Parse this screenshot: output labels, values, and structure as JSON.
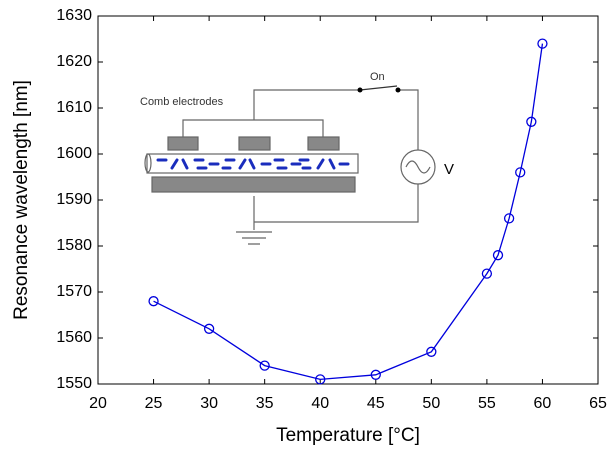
{
  "chart_data": {
    "type": "line",
    "x_label": "Temperature [°C]",
    "y_label": "Resonance wavelength [nm]",
    "x": [
      25,
      30,
      35,
      40,
      45,
      50,
      55,
      56,
      57,
      58,
      59,
      60
    ],
    "series": [
      {
        "color": "#0000dd",
        "values": [
          1568,
          1562,
          1554,
          1551,
          1552,
          1557,
          1574,
          1578,
          1586,
          1596,
          1607,
          1624
        ]
      }
    ],
    "xlim": [
      20,
      65
    ],
    "xticks": [
      20,
      25,
      30,
      35,
      40,
      45,
      50,
      55,
      60,
      65
    ],
    "ylim": [
      1550,
      1630
    ],
    "yticks": [
      1550,
      1560,
      1570,
      1580,
      1590,
      1600,
      1610,
      1620,
      1630
    ],
    "annotations": [
      "Comb electrodes",
      "On",
      "V"
    ]
  }
}
